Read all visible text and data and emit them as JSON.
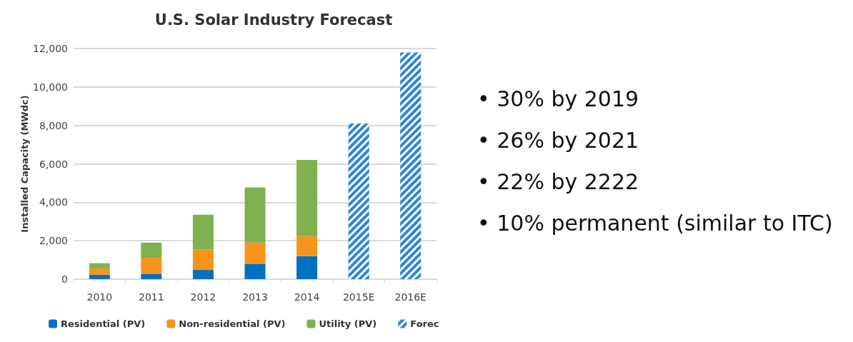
{
  "chart_data": {
    "type": "bar",
    "title": "U.S. Solar Industry Forecast",
    "ylabel": "Installed Capacity (MWdc)",
    "categories": [
      "2010",
      "2011",
      "2012",
      "2013",
      "2014",
      "2015E",
      "2016E"
    ],
    "stacked": true,
    "series": [
      {
        "name": "Residential (PV)",
        "color": "#0070c0",
        "values": [
          230,
          280,
          480,
          800,
          1200,
          null,
          null
        ]
      },
      {
        "name": "Non-residential (PV)",
        "color": "#f7941d",
        "values": [
          330,
          830,
          1070,
          1100,
          1040,
          null,
          null
        ]
      },
      {
        "name": "Utility (PV)",
        "color": "#7fb24e",
        "values": [
          270,
          790,
          1800,
          2870,
          3960,
          null,
          null
        ]
      },
      {
        "name": "Forec",
        "color": "#2e86d4",
        "values": [
          null,
          null,
          null,
          null,
          null,
          8100,
          11800
        ]
      }
    ],
    "ylim": [
      0,
      12000
    ],
    "yticks": [
      0,
      {
        "value": 2000,
        "label": "2,000"
      },
      {
        "value": 4000,
        "label": "4,000"
      },
      {
        "value": 6000,
        "label": "6,000"
      },
      {
        "value": 8000,
        "label": "8,000"
      },
      {
        "value": 10000,
        "label": "10,000"
      },
      {
        "value": 12000,
        "label": "12,000"
      }
    ],
    "grid": "y",
    "legend": "bottom",
    "annotations": [
      "• 30% by 2019",
      "• 26% by 2021",
      "• 22% by 2222",
      "• 10% permanent (similar to ITC)"
    ]
  }
}
